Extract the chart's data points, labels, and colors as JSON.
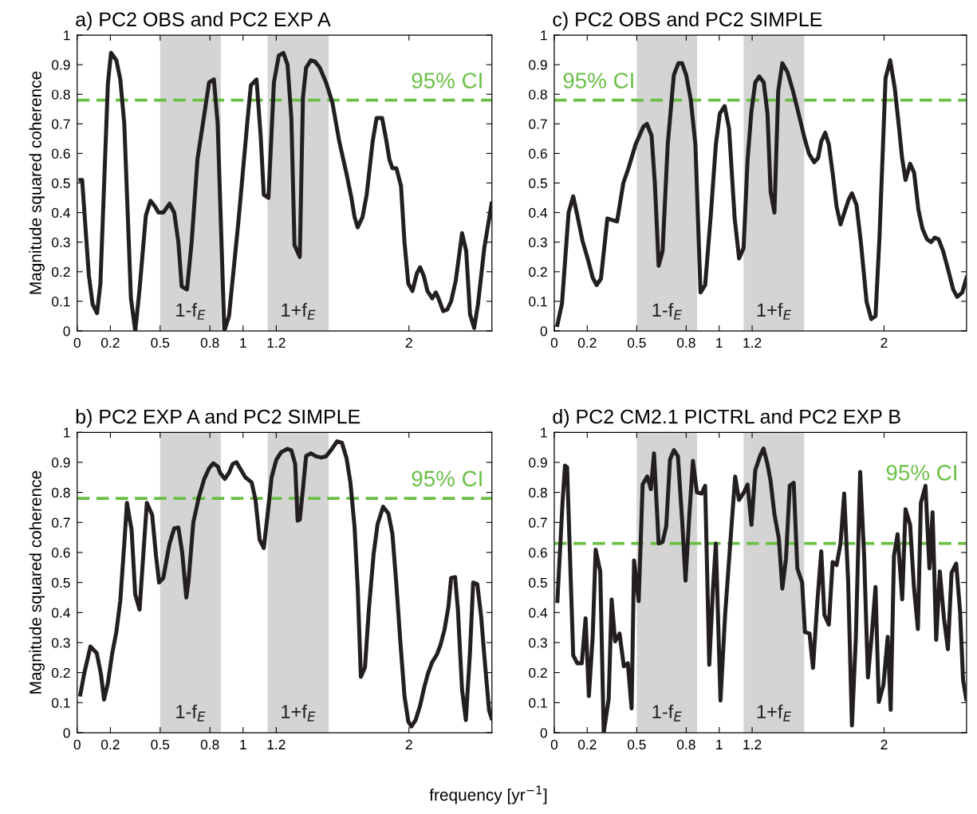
{
  "chart_data": [
    {
      "type": "line",
      "title": "a) PC2 OBS and PC2 EXP A",
      "ylabel": "Magnitude squared coherence",
      "xlim": [
        0,
        2.5
      ],
      "ylim": [
        0,
        1
      ],
      "xticks": [
        0,
        0.2,
        0.5,
        0.8,
        1,
        1.2,
        2
      ],
      "yticks": [
        0,
        0.1,
        0.2,
        0.3,
        0.4,
        0.5,
        0.6,
        0.7,
        0.8,
        0.9,
        1
      ],
      "grid": false,
      "legend": false,
      "series": [
        {
          "color": "#231f20",
          "x": [
            0.02,
            0.03,
            0.07,
            0.093,
            0.12,
            0.14,
            0.185,
            0.204,
            0.236,
            0.26,
            0.284,
            0.324,
            0.35,
            0.376,
            0.414,
            0.442,
            0.47,
            0.49,
            0.519,
            0.557,
            0.585,
            0.61,
            0.63,
            0.662,
            0.69,
            0.725,
            0.763,
            0.795,
            0.824,
            0.847,
            0.887,
            0.915,
            0.972,
            1.028,
            1.047,
            1.081,
            1.106,
            1.125,
            1.153,
            1.186,
            1.215,
            1.243,
            1.268,
            1.291,
            1.31,
            1.342,
            1.361,
            1.38,
            1.409,
            1.434,
            1.462,
            1.5,
            1.539,
            1.58,
            1.624,
            1.653,
            1.672,
            1.691,
            1.72,
            1.745,
            1.781,
            1.805,
            1.838,
            1.863,
            1.882,
            1.9,
            1.924,
            1.952,
            1.973,
            1.996,
            2.021,
            2.048,
            2.067,
            2.09,
            2.111,
            2.14,
            2.162,
            2.178,
            2.206,
            2.231,
            2.254,
            2.282,
            2.32,
            2.345,
            2.368,
            2.393,
            2.416,
            2.454,
            2.498
          ],
          "values": [
            0.51,
            0.51,
            0.19,
            0.09,
            0.06,
            0.16,
            0.835,
            0.94,
            0.915,
            0.85,
            0.7,
            0.11,
            0.0,
            0.14,
            0.39,
            0.44,
            0.42,
            0.4,
            0.4,
            0.43,
            0.4,
            0.3,
            0.15,
            0.14,
            0.3,
            0.58,
            0.72,
            0.84,
            0.85,
            0.7,
            0.0,
            0.05,
            0.37,
            0.72,
            0.83,
            0.85,
            0.66,
            0.46,
            0.45,
            0.84,
            0.93,
            0.94,
            0.9,
            0.72,
            0.29,
            0.25,
            0.79,
            0.89,
            0.915,
            0.91,
            0.89,
            0.84,
            0.77,
            0.64,
            0.53,
            0.45,
            0.385,
            0.35,
            0.385,
            0.46,
            0.64,
            0.72,
            0.72,
            0.645,
            0.58,
            0.55,
            0.55,
            0.49,
            0.3,
            0.16,
            0.135,
            0.195,
            0.215,
            0.185,
            0.135,
            0.11,
            0.13,
            0.11,
            0.067,
            0.072,
            0.1,
            0.17,
            0.33,
            0.27,
            0.056,
            0.01,
            0.09,
            0.28,
            0.43
          ]
        }
      ],
      "ref_lines": [
        {
          "axis": "y",
          "value": 0.78,
          "label": "95% CI",
          "color": "#6abf45",
          "line_style": "dashed"
        }
      ],
      "bands": [
        {
          "axis": "x",
          "from": 0.5,
          "to": 0.866,
          "label": "1-f$_{E}$",
          "color": "#d4d4d4"
        },
        {
          "axis": "x",
          "from": 1.148,
          "to": 1.516,
          "label": "1+f$_{E}$",
          "color": "#d4d4d4"
        }
      ]
    },
    {
      "type": "line",
      "title": "c) PC2 OBS and PC2 SIMPLE",
      "xlim": [
        0,
        2.5
      ],
      "ylim": [
        0,
        1
      ],
      "xticks": [
        0,
        0.2,
        0.5,
        0.8,
        1,
        1.2,
        2
      ],
      "yticks": [
        0,
        0.1,
        0.2,
        0.3,
        0.4,
        0.5,
        0.6,
        0.7,
        0.8,
        0.9,
        1
      ],
      "grid": false,
      "legend": false,
      "series": [
        {
          "color": "#231f20",
          "x": [
            0.019,
            0.047,
            0.087,
            0.115,
            0.14,
            0.171,
            0.205,
            0.233,
            0.257,
            0.283,
            0.322,
            0.35,
            0.381,
            0.419,
            0.45,
            0.493,
            0.54,
            0.562,
            0.59,
            0.61,
            0.633,
            0.657,
            0.688,
            0.725,
            0.753,
            0.775,
            0.8,
            0.828,
            0.856,
            0.887,
            0.915,
            0.949,
            0.98,
            1.004,
            1.033,
            1.06,
            1.094,
            1.121,
            1.148,
            1.172,
            1.195,
            1.219,
            1.243,
            1.27,
            1.293,
            1.312,
            1.335,
            1.358,
            1.383,
            1.414,
            1.448,
            1.486,
            1.516,
            1.544,
            1.576,
            1.6,
            1.619,
            1.643,
            1.665,
            1.69,
            1.712,
            1.736,
            1.762,
            1.786,
            1.805,
            1.833,
            1.86,
            1.894,
            1.922,
            1.948,
            1.972,
            2.009,
            2.037,
            2.065,
            2.09,
            2.109,
            2.13,
            2.158,
            2.182,
            2.208,
            2.233,
            2.26,
            2.285,
            2.307,
            2.33,
            2.358,
            2.387,
            2.419,
            2.443,
            2.474,
            2.5
          ],
          "values": [
            0.02,
            0.093,
            0.4,
            0.455,
            0.39,
            0.305,
            0.24,
            0.18,
            0.155,
            0.176,
            0.38,
            0.375,
            0.37,
            0.5,
            0.55,
            0.63,
            0.69,
            0.7,
            0.66,
            0.5,
            0.22,
            0.27,
            0.63,
            0.865,
            0.905,
            0.905,
            0.865,
            0.78,
            0.63,
            0.13,
            0.155,
            0.39,
            0.63,
            0.735,
            0.76,
            0.685,
            0.38,
            0.245,
            0.28,
            0.575,
            0.74,
            0.84,
            0.86,
            0.84,
            0.735,
            0.47,
            0.4,
            0.81,
            0.905,
            0.875,
            0.81,
            0.725,
            0.655,
            0.6,
            0.57,
            0.585,
            0.64,
            0.67,
            0.63,
            0.525,
            0.42,
            0.36,
            0.405,
            0.445,
            0.465,
            0.425,
            0.295,
            0.098,
            0.04,
            0.05,
            0.315,
            0.855,
            0.915,
            0.82,
            0.69,
            0.585,
            0.51,
            0.565,
            0.535,
            0.41,
            0.345,
            0.31,
            0.3,
            0.315,
            0.31,
            0.27,
            0.21,
            0.14,
            0.115,
            0.13,
            0.18
          ]
        }
      ],
      "ref_lines": [
        {
          "axis": "y",
          "value": 0.78,
          "label": "95% CI",
          "color": "#6abf45",
          "line_style": "dashed"
        }
      ],
      "bands": [
        {
          "axis": "x",
          "from": 0.5,
          "to": 0.866,
          "label": "1-f$_{E}$",
          "color": "#d4d4d4"
        },
        {
          "axis": "x",
          "from": 1.148,
          "to": 1.516,
          "label": "1+f$_{E}$",
          "color": "#d4d4d4"
        }
      ]
    },
    {
      "type": "line",
      "title": "b) PC2 EXP A and PC2 SIMPLE",
      "ylabel": "Magnitude squared coherence",
      "xlabel": "frequency [yr$^{−1}$]",
      "xlim": [
        0,
        2.5
      ],
      "ylim": [
        0,
        1
      ],
      "xticks": [
        0,
        0.2,
        0.5,
        0.8,
        1,
        1.2,
        2
      ],
      "yticks": [
        0,
        0.1,
        0.2,
        0.3,
        0.4,
        0.5,
        0.6,
        0.7,
        0.8,
        0.9,
        1
      ],
      "grid": false,
      "legend": false,
      "series": [
        {
          "color": "#231f20",
          "x": [
            0.019,
            0.042,
            0.08,
            0.118,
            0.143,
            0.162,
            0.185,
            0.21,
            0.236,
            0.26,
            0.284,
            0.3,
            0.328,
            0.35,
            0.376,
            0.42,
            0.452,
            0.475,
            0.494,
            0.519,
            0.557,
            0.585,
            0.61,
            0.633,
            0.658,
            0.671,
            0.7,
            0.734,
            0.766,
            0.795,
            0.82,
            0.848,
            0.862,
            0.89,
            0.915,
            0.938,
            0.961,
            0.986,
            1.014,
            1.052,
            1.075,
            1.1,
            1.125,
            1.148,
            1.172,
            1.2,
            1.23,
            1.268,
            1.291,
            1.314,
            1.329,
            1.342,
            1.361,
            1.38,
            1.409,
            1.44,
            1.472,
            1.5,
            1.529,
            1.567,
            1.596,
            1.624,
            1.647,
            1.672,
            1.691,
            1.71,
            1.735,
            1.758,
            1.787,
            1.811,
            1.844,
            1.876,
            1.9,
            1.924,
            1.948,
            1.973,
            1.996,
            2.015,
            2.04,
            2.067,
            2.091,
            2.114,
            2.139,
            2.168,
            2.19,
            2.215,
            2.238,
            2.254,
            2.278,
            2.295,
            2.32,
            2.343,
            2.368,
            2.387,
            2.412,
            2.435,
            2.46,
            2.483,
            2.498
          ],
          "values": [
            0.127,
            0.196,
            0.287,
            0.265,
            0.196,
            0.11,
            0.165,
            0.26,
            0.335,
            0.44,
            0.63,
            0.765,
            0.675,
            0.46,
            0.41,
            0.765,
            0.725,
            0.59,
            0.5,
            0.515,
            0.63,
            0.68,
            0.683,
            0.6,
            0.45,
            0.504,
            0.7,
            0.785,
            0.845,
            0.88,
            0.897,
            0.886,
            0.865,
            0.845,
            0.865,
            0.895,
            0.9,
            0.876,
            0.85,
            0.833,
            0.775,
            0.642,
            0.615,
            0.727,
            0.85,
            0.908,
            0.934,
            0.945,
            0.94,
            0.895,
            0.706,
            0.71,
            0.812,
            0.921,
            0.93,
            0.92,
            0.916,
            0.92,
            0.94,
            0.97,
            0.965,
            0.913,
            0.833,
            0.685,
            0.483,
            0.186,
            0.218,
            0.409,
            0.595,
            0.695,
            0.752,
            0.73,
            0.663,
            0.494,
            0.303,
            0.122,
            0.037,
            0.021,
            0.042,
            0.09,
            0.149,
            0.196,
            0.234,
            0.26,
            0.292,
            0.345,
            0.42,
            0.515,
            0.518,
            0.41,
            0.143,
            0.042,
            0.27,
            0.5,
            0.494,
            0.387,
            0.218,
            0.074,
            0.048
          ]
        }
      ],
      "ref_lines": [
        {
          "axis": "y",
          "value": 0.78,
          "label": "95% CI",
          "color": "#6abf45",
          "line_style": "dashed"
        }
      ],
      "bands": [
        {
          "axis": "x",
          "from": 0.5,
          "to": 0.866,
          "label": "1-f$_{E}$",
          "color": "#d4d4d4"
        },
        {
          "axis": "x",
          "from": 1.148,
          "to": 1.516,
          "label": "1+f$_{E}$",
          "color": "#d4d4d4"
        }
      ]
    },
    {
      "type": "line",
      "title": "d) PC2 CM2.1 PICTRL and PC2 EXP B",
      "xlim": [
        0,
        2.5
      ],
      "ylim": [
        0,
        1
      ],
      "xticks": [
        0,
        0.2,
        0.5,
        0.8,
        1,
        1.2,
        2
      ],
      "yticks": [
        0,
        0.1,
        0.2,
        0.3,
        0.4,
        0.5,
        0.6,
        0.7,
        0.8,
        0.9,
        1
      ],
      "grid": false,
      "legend": false,
      "series": [
        {
          "color": "#231f20",
          "x": [
            0.019,
            0.05,
            0.065,
            0.078,
            0.093,
            0.115,
            0.14,
            0.167,
            0.19,
            0.21,
            0.233,
            0.251,
            0.279,
            0.3,
            0.33,
            0.348,
            0.369,
            0.396,
            0.422,
            0.446,
            0.469,
            0.484,
            0.512,
            0.536,
            0.564,
            0.586,
            0.605,
            0.633,
            0.657,
            0.679,
            0.702,
            0.726,
            0.75,
            0.776,
            0.796,
            0.819,
            0.841,
            0.865,
            0.893,
            0.915,
            0.94,
            0.962,
            0.98,
            1.008,
            1.036,
            1.07,
            1.097,
            1.12,
            1.15,
            1.172,
            1.196,
            1.219,
            1.247,
            1.269,
            1.293,
            1.312,
            1.335,
            1.362,
            1.383,
            1.405,
            1.428,
            1.452,
            1.474,
            1.503,
            1.52,
            1.548,
            1.569,
            1.595,
            1.619,
            1.638,
            1.665,
            1.688,
            1.712,
            1.736,
            1.758,
            1.782,
            1.805,
            1.829,
            1.855,
            1.879,
            1.902,
            1.926,
            1.948,
            1.968,
            1.996,
            2.022,
            2.04,
            2.06,
            2.082,
            2.11,
            2.13,
            2.158,
            2.181,
            2.205,
            2.223,
            2.251,
            2.275,
            2.294,
            2.316,
            2.338,
            2.363,
            2.387,
            2.409,
            2.437,
            2.461,
            2.479,
            2.498
          ],
          "values": [
            0.438,
            0.765,
            0.889,
            0.884,
            0.63,
            0.257,
            0.231,
            0.231,
            0.381,
            0.122,
            0.319,
            0.609,
            0.537,
            0.0,
            0.112,
            0.443,
            0.304,
            0.33,
            0.221,
            0.231,
            0.081,
            0.573,
            0.438,
            0.827,
            0.853,
            0.811,
            0.93,
            0.63,
            0.635,
            0.687,
            0.91,
            0.941,
            0.92,
            0.702,
            0.506,
            0.723,
            0.905,
            0.8,
            0.796,
            0.822,
            0.226,
            0.475,
            0.63,
            0.107,
            0.392,
            0.651,
            0.853,
            0.775,
            0.8,
            0.826,
            0.692,
            0.874,
            0.92,
            0.946,
            0.894,
            0.837,
            0.728,
            0.646,
            0.48,
            0.578,
            0.822,
            0.832,
            0.547,
            0.5,
            0.335,
            0.33,
            0.216,
            0.433,
            0.604,
            0.392,
            0.36,
            0.568,
            0.558,
            0.63,
            0.796,
            0.506,
            0.024,
            0.319,
            0.868,
            0.589,
            0.184,
            0.33,
            0.485,
            0.102,
            0.159,
            0.319,
            0.076,
            0.589,
            0.661,
            0.444,
            0.744,
            0.692,
            0.485,
            0.345,
            0.765,
            0.822,
            0.547,
            0.734,
            0.309,
            0.537,
            0.381,
            0.278,
            0.532,
            0.563,
            0.402,
            0.174,
            0.112
          ]
        }
      ],
      "ref_lines": [
        {
          "axis": "y",
          "value": 0.63,
          "label": "95% CI",
          "color": "#6abf45",
          "line_style": "dashed"
        }
      ],
      "bands": [
        {
          "axis": "x",
          "from": 0.5,
          "to": 0.866,
          "label": "1-f$_{E}$",
          "color": "#d4d4d4"
        },
        {
          "axis": "x",
          "from": 1.148,
          "to": 1.516,
          "label": "1+f$_{E}$",
          "color": "#d4d4d4"
        }
      ]
    }
  ]
}
